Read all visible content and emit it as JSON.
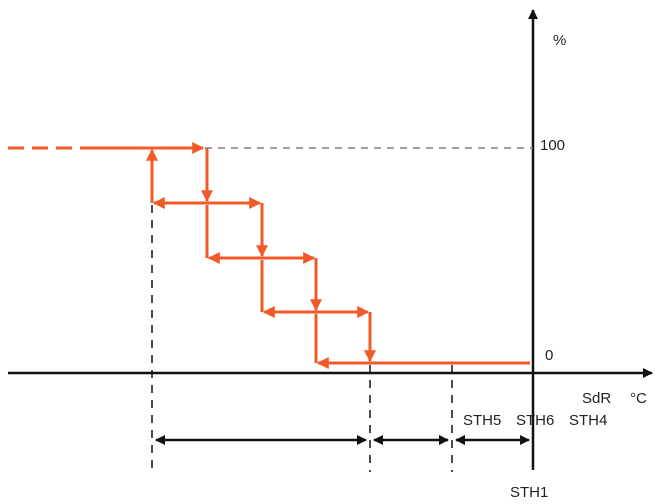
{
  "labels": {
    "y_unit": "%",
    "level_high": "100",
    "level_low": "0",
    "x_name": "SdR",
    "x_unit": "°C",
    "sth5": "STH5",
    "sth6": "STH6",
    "sth4": "STH4",
    "sth1": "STH1"
  }
}
